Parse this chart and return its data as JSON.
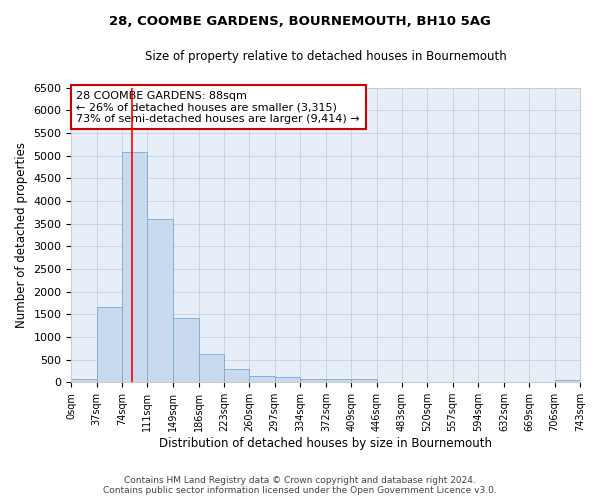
{
  "title": "28, COOMBE GARDENS, BOURNEMOUTH, BH10 5AG",
  "subtitle": "Size of property relative to detached houses in Bournemouth",
  "xlabel": "Distribution of detached houses by size in Bournemouth",
  "ylabel": "Number of detached properties",
  "footer_line1": "Contains HM Land Registry data © Crown copyright and database right 2024.",
  "footer_line2": "Contains public sector information licensed under the Open Government Licence v3.0.",
  "bin_edges": [
    0,
    37,
    74,
    111,
    149,
    186,
    223,
    260,
    297,
    334,
    372,
    409,
    446,
    483,
    520,
    557,
    594,
    632,
    669,
    706,
    743
  ],
  "bar_heights": [
    75,
    1650,
    5075,
    3600,
    1420,
    615,
    290,
    145,
    110,
    75,
    65,
    65,
    0,
    0,
    0,
    0,
    0,
    0,
    0,
    55
  ],
  "bar_color": "#c9d9ee",
  "bar_edge_color": "#7aaad0",
  "red_line_x": 88,
  "ylim": [
    0,
    6500
  ],
  "yticks": [
    0,
    500,
    1000,
    1500,
    2000,
    2500,
    3000,
    3500,
    4000,
    4500,
    5000,
    5500,
    6000,
    6500
  ],
  "annotation_text": "28 COOMBE GARDENS: 88sqm\n← 26% of detached houses are smaller (3,315)\n73% of semi-detached houses are larger (9,414) →",
  "annotation_box_color": "#ffffff",
  "annotation_box_edge_color": "#cc0000",
  "grid_color": "#c8d4e8",
  "background_color": "#e8eef8"
}
